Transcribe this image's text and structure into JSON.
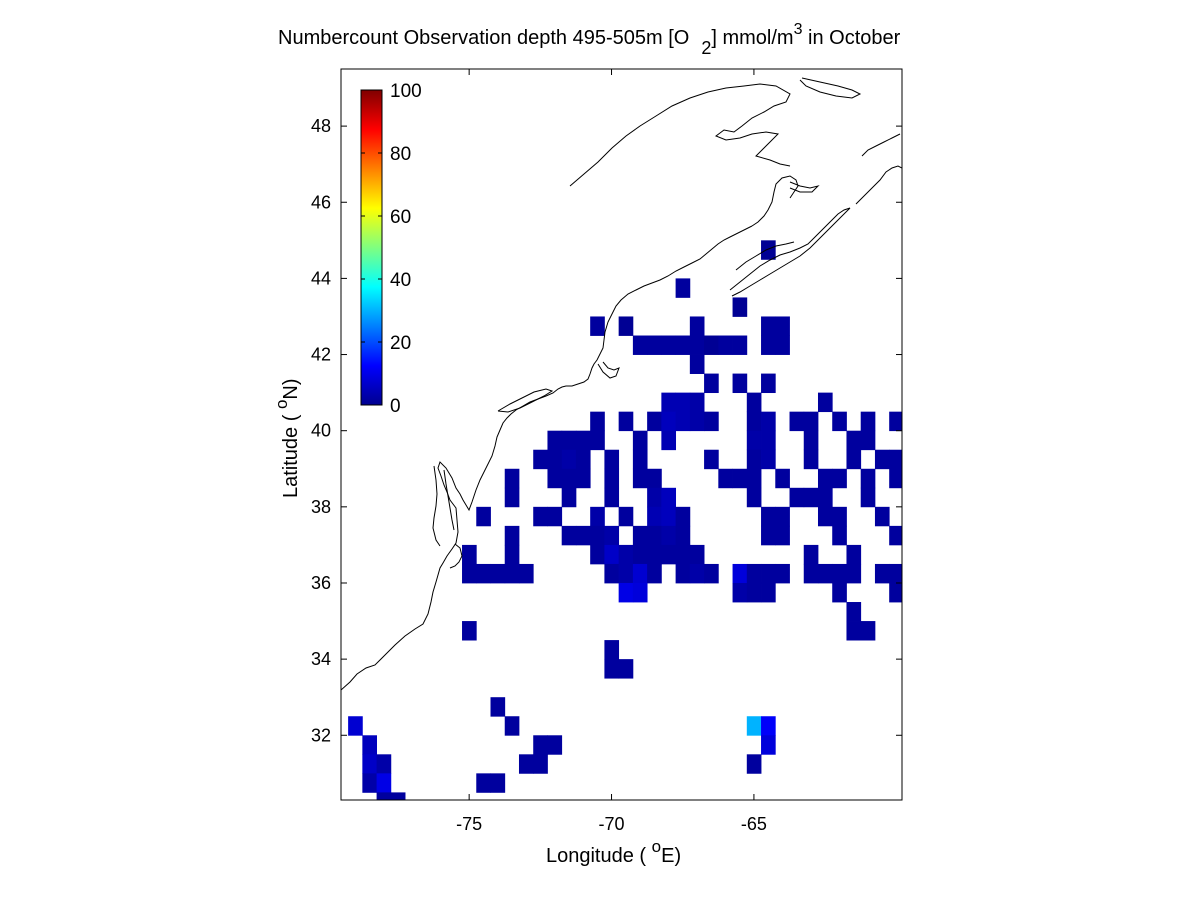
{
  "chart_data": {
    "type": "heatmap",
    "title": {
      "main": "Numbercount Observation depth 495-505m [O",
      "sub": "2",
      "unit": "] mmol/m",
      "sup": "3",
      "month": " in October"
    },
    "xlabel": {
      "pre": "Longitude ( ",
      "deg": "o",
      "post": "E)"
    },
    "ylabel": {
      "pre": "Latitude ( ",
      "deg": "o",
      "post": "N)"
    },
    "xlim": [
      -79.5,
      -59.8
    ],
    "ylim": [
      30.3,
      49.5
    ],
    "xticks": [
      -75,
      -70,
      -65
    ],
    "xtick_labels": [
      "-75",
      "-70",
      "-65"
    ],
    "yticks": [
      32,
      34,
      36,
      38,
      40,
      42,
      44,
      46,
      48
    ],
    "ytick_labels": [
      "32",
      "34",
      "36",
      "38",
      "40",
      "42",
      "44",
      "46",
      "48"
    ],
    "colorbar": {
      "colormap": "jet",
      "ticks": [
        0,
        20,
        40,
        60,
        80,
        100
      ],
      "tick_labels": [
        "0",
        "20",
        "40",
        "60",
        "80",
        "100"
      ],
      "range": [
        0,
        100
      ]
    },
    "cell_size_deg": 0.5,
    "cells": [
      [
        -64.5,
        44.75,
        2
      ],
      [
        -67.5,
        43.75,
        3
      ],
      [
        -65.5,
        43.25,
        2
      ],
      [
        -70.5,
        42.75,
        3
      ],
      [
        -69.5,
        42.75,
        2
      ],
      [
        -67.0,
        42.75,
        3
      ],
      [
        -64.5,
        42.75,
        3
      ],
      [
        -64.0,
        42.75,
        3
      ],
      [
        -69.0,
        42.25,
        3
      ],
      [
        -68.5,
        42.25,
        3
      ],
      [
        -68.0,
        42.25,
        3
      ],
      [
        -67.5,
        42.25,
        3
      ],
      [
        -67.0,
        42.25,
        3
      ],
      [
        -66.5,
        42.25,
        2
      ],
      [
        -66.0,
        42.25,
        3
      ],
      [
        -65.5,
        42.25,
        3
      ],
      [
        -64.5,
        42.25,
        3
      ],
      [
        -64.0,
        42.25,
        3
      ],
      [
        -67.0,
        41.75,
        3
      ],
      [
        -66.5,
        41.25,
        3
      ],
      [
        -65.5,
        41.25,
        3
      ],
      [
        -64.5,
        41.25,
        3
      ],
      [
        -68.0,
        40.75,
        5
      ],
      [
        -67.5,
        40.75,
        5
      ],
      [
        -67.0,
        40.75,
        4
      ],
      [
        -65.0,
        40.75,
        3
      ],
      [
        -62.5,
        40.75,
        3
      ],
      [
        -70.5,
        40.25,
        3
      ],
      [
        -69.5,
        40.25,
        3
      ],
      [
        -68.5,
        40.25,
        3
      ],
      [
        -68.0,
        40.25,
        6
      ],
      [
        -67.5,
        40.25,
        5
      ],
      [
        -67.0,
        40.25,
        4
      ],
      [
        -66.5,
        40.25,
        3
      ],
      [
        -65.0,
        40.25,
        3
      ],
      [
        -64.5,
        40.25,
        4
      ],
      [
        -63.5,
        40.25,
        3
      ],
      [
        -63.0,
        40.25,
        3
      ],
      [
        -62.0,
        40.25,
        3
      ],
      [
        -61.0,
        40.25,
        3
      ],
      [
        -60.0,
        40.25,
        3
      ],
      [
        -72.0,
        39.75,
        3
      ],
      [
        -71.5,
        39.75,
        3
      ],
      [
        -71.0,
        39.75,
        3
      ],
      [
        -70.5,
        39.75,
        3
      ],
      [
        -69.0,
        39.75,
        3
      ],
      [
        -68.0,
        39.75,
        5
      ],
      [
        -65.0,
        39.75,
        4
      ],
      [
        -64.5,
        39.75,
        4
      ],
      [
        -63.0,
        39.75,
        3
      ],
      [
        -61.5,
        39.75,
        3
      ],
      [
        -61.0,
        39.75,
        3
      ],
      [
        -72.5,
        39.25,
        3
      ],
      [
        -72.0,
        39.25,
        3
      ],
      [
        -71.5,
        39.25,
        4
      ],
      [
        -71.0,
        39.25,
        3
      ],
      [
        -70.0,
        39.25,
        3
      ],
      [
        -69.0,
        39.25,
        3
      ],
      [
        -66.5,
        39.25,
        3
      ],
      [
        -65.0,
        39.25,
        3
      ],
      [
        -64.5,
        39.25,
        4
      ],
      [
        -63.0,
        39.25,
        3
      ],
      [
        -61.5,
        39.25,
        3
      ],
      [
        -60.5,
        39.25,
        3
      ],
      [
        -60.0,
        39.25,
        3
      ],
      [
        -73.5,
        38.75,
        3
      ],
      [
        -72.0,
        38.75,
        3
      ],
      [
        -71.5,
        38.75,
        3
      ],
      [
        -71.0,
        38.75,
        3
      ],
      [
        -70.0,
        38.75,
        3
      ],
      [
        -69.0,
        38.75,
        3
      ],
      [
        -68.5,
        38.75,
        3
      ],
      [
        -66.0,
        38.75,
        3
      ],
      [
        -65.5,
        38.75,
        3
      ],
      [
        -65.0,
        38.75,
        3
      ],
      [
        -64.0,
        38.75,
        3
      ],
      [
        -62.5,
        38.75,
        3
      ],
      [
        -62.0,
        38.75,
        3
      ],
      [
        -61.0,
        38.75,
        3
      ],
      [
        -60.0,
        38.75,
        3
      ],
      [
        -73.5,
        38.25,
        3
      ],
      [
        -71.5,
        38.25,
        3
      ],
      [
        -70.0,
        38.25,
        3
      ],
      [
        -68.5,
        38.25,
        4
      ],
      [
        -68.0,
        38.25,
        6
      ],
      [
        -65.0,
        38.25,
        3
      ],
      [
        -63.5,
        38.25,
        3
      ],
      [
        -63.0,
        38.25,
        3
      ],
      [
        -62.5,
        38.25,
        3
      ],
      [
        -61.0,
        38.25,
        3
      ],
      [
        -74.5,
        37.75,
        3
      ],
      [
        -72.5,
        37.75,
        3
      ],
      [
        -72.0,
        37.75,
        3
      ],
      [
        -70.5,
        37.75,
        4
      ],
      [
        -69.5,
        37.75,
        3
      ],
      [
        -68.5,
        37.75,
        5
      ],
      [
        -68.0,
        37.75,
        6
      ],
      [
        -67.5,
        37.75,
        3
      ],
      [
        -64.5,
        37.75,
        3
      ],
      [
        -64.0,
        37.75,
        3
      ],
      [
        -62.5,
        37.75,
        3
      ],
      [
        -62.0,
        37.75,
        3
      ],
      [
        -60.5,
        37.75,
        3
      ],
      [
        -73.5,
        37.25,
        3
      ],
      [
        -71.5,
        37.25,
        3
      ],
      [
        -71.0,
        37.25,
        3
      ],
      [
        -70.5,
        37.25,
        3
      ],
      [
        -70.0,
        37.25,
        4
      ],
      [
        -69.0,
        37.25,
        3
      ],
      [
        -68.5,
        37.25,
        3
      ],
      [
        -68.0,
        37.25,
        4
      ],
      [
        -67.5,
        37.25,
        3
      ],
      [
        -64.5,
        37.25,
        3
      ],
      [
        -64.0,
        37.25,
        3
      ],
      [
        -62.0,
        37.25,
        3
      ],
      [
        -60.0,
        37.25,
        3
      ],
      [
        -75.0,
        36.75,
        3
      ],
      [
        -73.5,
        36.75,
        3
      ],
      [
        -70.5,
        36.75,
        3
      ],
      [
        -70.0,
        36.75,
        7
      ],
      [
        -69.5,
        36.75,
        4
      ],
      [
        -69.0,
        36.75,
        3
      ],
      [
        -68.5,
        36.75,
        3
      ],
      [
        -68.0,
        36.75,
        3
      ],
      [
        -67.5,
        36.75,
        3
      ],
      [
        -67.0,
        36.75,
        3
      ],
      [
        -63.0,
        36.75,
        3
      ],
      [
        -61.5,
        36.75,
        3
      ],
      [
        -75.0,
        36.25,
        3
      ],
      [
        -74.5,
        36.25,
        3
      ],
      [
        -74.0,
        36.25,
        3
      ],
      [
        -73.5,
        36.25,
        3
      ],
      [
        -73.0,
        36.25,
        3
      ],
      [
        -70.0,
        36.25,
        3
      ],
      [
        -69.5,
        36.25,
        4
      ],
      [
        -69.0,
        36.25,
        8
      ],
      [
        -68.5,
        36.25,
        3
      ],
      [
        -67.5,
        36.25,
        3
      ],
      [
        -67.0,
        36.25,
        4
      ],
      [
        -66.5,
        36.25,
        3
      ],
      [
        -65.5,
        36.25,
        9
      ],
      [
        -65.0,
        36.25,
        3
      ],
      [
        -64.5,
        36.25,
        3
      ],
      [
        -64.0,
        36.25,
        3
      ],
      [
        -63.0,
        36.25,
        3
      ],
      [
        -62.5,
        36.25,
        3
      ],
      [
        -62.0,
        36.25,
        3
      ],
      [
        -61.5,
        36.25,
        3
      ],
      [
        -60.5,
        36.25,
        3
      ],
      [
        -60.0,
        36.25,
        3
      ],
      [
        -69.5,
        35.75,
        10
      ],
      [
        -69.0,
        35.75,
        9
      ],
      [
        -65.5,
        35.75,
        4
      ],
      [
        -65.0,
        35.75,
        3
      ],
      [
        -64.5,
        35.75,
        3
      ],
      [
        -62.0,
        35.75,
        3
      ],
      [
        -60.0,
        35.75,
        3
      ],
      [
        -61.5,
        35.25,
        3
      ],
      [
        -75.0,
        34.75,
        3
      ],
      [
        -61.5,
        34.75,
        3
      ],
      [
        -61.0,
        34.75,
        3
      ],
      [
        -70.0,
        34.25,
        3
      ],
      [
        -70.0,
        33.75,
        3
      ],
      [
        -69.5,
        33.75,
        3
      ],
      [
        -74.0,
        32.75,
        3
      ],
      [
        -79.0,
        32.25,
        8
      ],
      [
        -73.5,
        32.25,
        3
      ],
      [
        -65.0,
        32.25,
        30
      ],
      [
        -64.5,
        32.25,
        12
      ],
      [
        -78.5,
        31.75,
        6
      ],
      [
        -72.5,
        31.75,
        3
      ],
      [
        -72.0,
        31.75,
        3
      ],
      [
        -64.5,
        31.75,
        9
      ],
      [
        -78.5,
        31.25,
        7
      ],
      [
        -78.0,
        31.25,
        4
      ],
      [
        -73.0,
        31.25,
        3
      ],
      [
        -72.5,
        31.25,
        3
      ],
      [
        -65.0,
        31.25,
        3
      ],
      [
        -78.5,
        30.75,
        4
      ],
      [
        -78.0,
        30.75,
        10
      ],
      [
        -74.5,
        30.75,
        3
      ],
      [
        -74.0,
        30.75,
        3
      ],
      [
        -78.0,
        30.25,
        3
      ],
      [
        -77.5,
        30.25,
        3
      ]
    ]
  }
}
